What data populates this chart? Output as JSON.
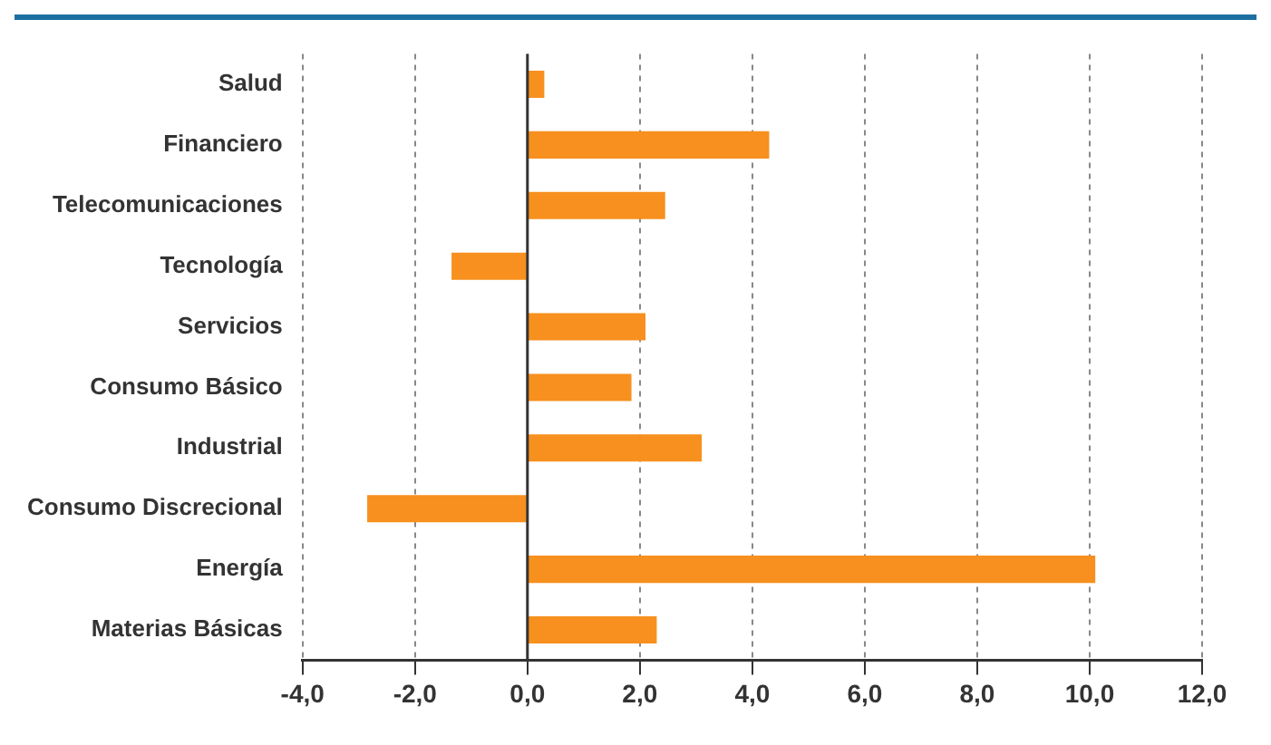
{
  "chart_data": {
    "type": "bar",
    "orientation": "horizontal",
    "categories": [
      "Salud",
      "Financiero",
      "Telecomunicaciones",
      "Tecnología",
      "Servicios",
      "Consumo Básico",
      "Industrial",
      "Consumo Discrecional",
      "Energía",
      "Materias Básicas"
    ],
    "values": [
      0.3,
      4.3,
      2.45,
      -1.35,
      2.1,
      1.85,
      3.1,
      -2.85,
      10.1,
      2.3
    ],
    "color": "#f7901e",
    "xlim": [
      -4,
      12
    ],
    "xticks": [
      {
        "value": -4,
        "label": "-4,0"
      },
      {
        "value": -2,
        "label": "-2,0"
      },
      {
        "value": 0,
        "label": "0,0"
      },
      {
        "value": 2,
        "label": "2,0"
      },
      {
        "value": 4,
        "label": "4,0"
      },
      {
        "value": 6,
        "label": "6,0"
      },
      {
        "value": 8,
        "label": "8,0"
      },
      {
        "value": 10,
        "label": "10,0"
      },
      {
        "value": 12,
        "label": "12,0"
      }
    ],
    "grid": "x",
    "legend": false
  }
}
